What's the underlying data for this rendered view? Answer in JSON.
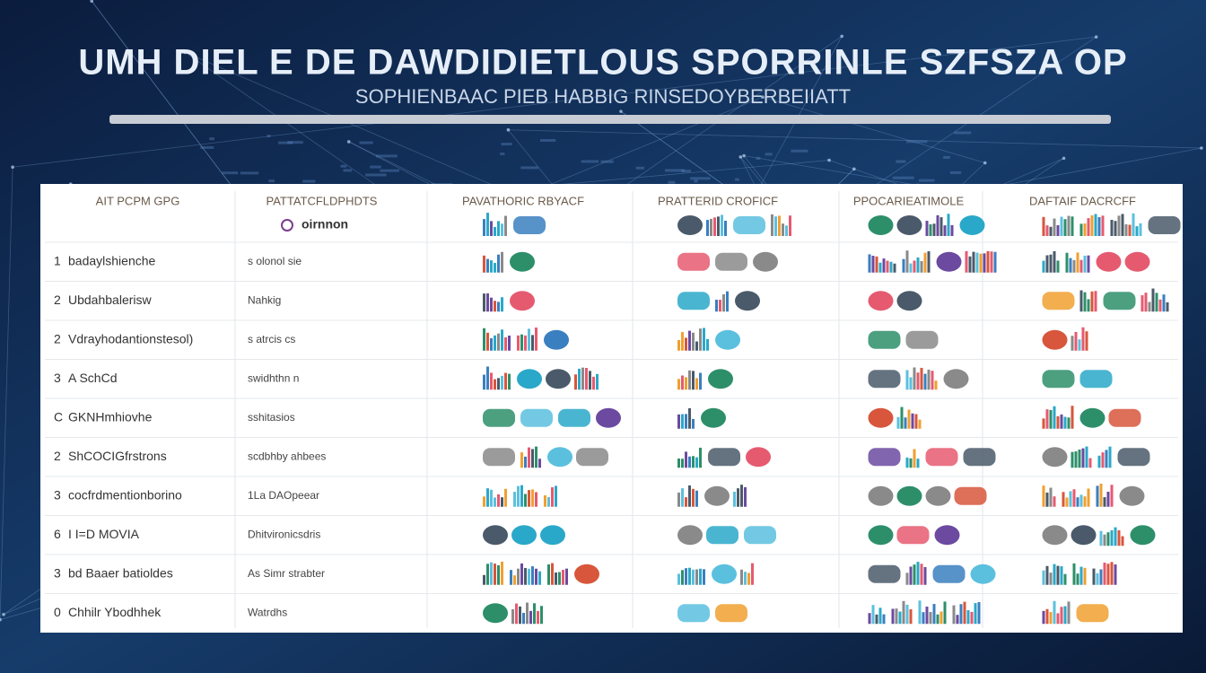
{
  "header": {
    "title": "UMH DIEL E DE DAWDIDIETLOUS SPORRINLE SZFSZA OP",
    "subtitle": "SOPHIENBAAC PIEB HABBIG RINSEDOYBERBEIIATT"
  },
  "table": {
    "columns": [
      "AIT PCPM GPG",
      "PATTATCFLDPHDTS",
      "PAVATHORIC RBYACF",
      "PRATTERID CROFICF",
      "PPOCARIEATIMOLE",
      "DAFTAIF DACRCFF"
    ],
    "subheader": "oirnnon",
    "rows": [
      {
        "num": "1",
        "label": "badaylshienche",
        "detail": "s olonol sie"
      },
      {
        "num": "2",
        "label": "Ubdahbalerisw",
        "detail": "Nahkig"
      },
      {
        "num": "2",
        "label": "Vdrayhodantionstesol)",
        "detail": "s atrcis cs"
      },
      {
        "num": "3",
        "label": "A SchCd",
        "detail": "swidhthn n"
      },
      {
        "num": "C",
        "label": "GKNHmhiovhe",
        "detail": "sshitasios"
      },
      {
        "num": "2",
        "label": "ShCOCIGfrstrons",
        "detail": "scdbhby ahbees"
      },
      {
        "num": "3",
        "label": "cocfrdmentionborino",
        "detail": "1La DAOpeear"
      },
      {
        "num": "6",
        "label": "I I=D MOVIA",
        "detail": "Dhitvironicsdris"
      },
      {
        "num": "3",
        "label": "bd Baaer batioldes",
        "detail": "As Simr strabter"
      },
      {
        "num": "0",
        "label": "Chhilr Ybodhhek",
        "detail": "Watrdhs"
      }
    ]
  }
}
